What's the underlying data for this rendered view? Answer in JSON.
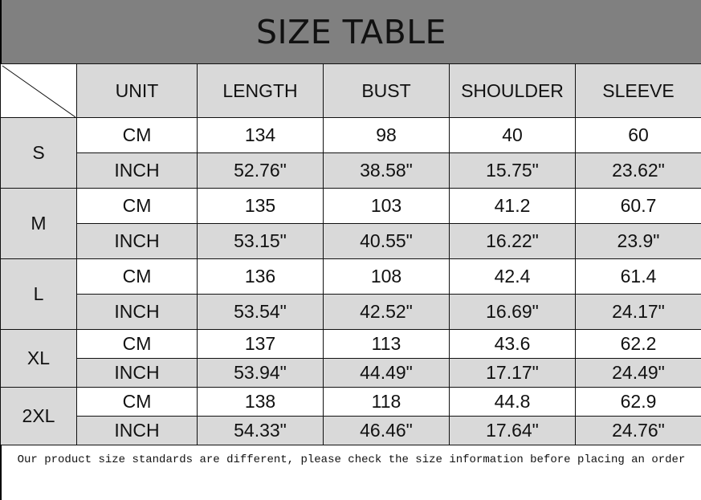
{
  "title": "SIZE TABLE",
  "headers": [
    "UNIT",
    "LENGTH",
    "BUST",
    "SHOULDER",
    "SLEEVE"
  ],
  "sizes": [
    {
      "size": "S",
      "cm": [
        "CM",
        "134",
        "98",
        "40",
        "60"
      ],
      "inch": [
        "INCH",
        "52.76\"",
        "38.58\"",
        "15.75\"",
        "23.62\""
      ]
    },
    {
      "size": "M",
      "cm": [
        "CM",
        "135",
        "103",
        "41.2",
        "60.7"
      ],
      "inch": [
        "INCH",
        "53.15\"",
        "40.55\"",
        "16.22\"",
        "23.9\""
      ]
    },
    {
      "size": "L",
      "cm": [
        "CM",
        "136",
        "108",
        "42.4",
        "61.4"
      ],
      "inch": [
        "INCH",
        "53.54\"",
        "42.52\"",
        "16.69\"",
        "24.17\""
      ]
    },
    {
      "size": "XL",
      "cm": [
        "CM",
        "137",
        "113",
        "43.6",
        "62.2"
      ],
      "inch": [
        "INCH",
        "53.94\"",
        "44.49\"",
        "17.17\"",
        "24.49\""
      ]
    },
    {
      "size": "2XL",
      "cm": [
        "CM",
        "138",
        "118",
        "44.8",
        "62.9"
      ],
      "inch": [
        "INCH",
        "54.33\"",
        "46.46\"",
        "17.64\"",
        "24.76\""
      ]
    }
  ],
  "footer": "Our product size standards are different, please check the size information before placing an order",
  "colors": {
    "title_bg": "#808080",
    "cell_gray": "#d9d9d9"
  }
}
